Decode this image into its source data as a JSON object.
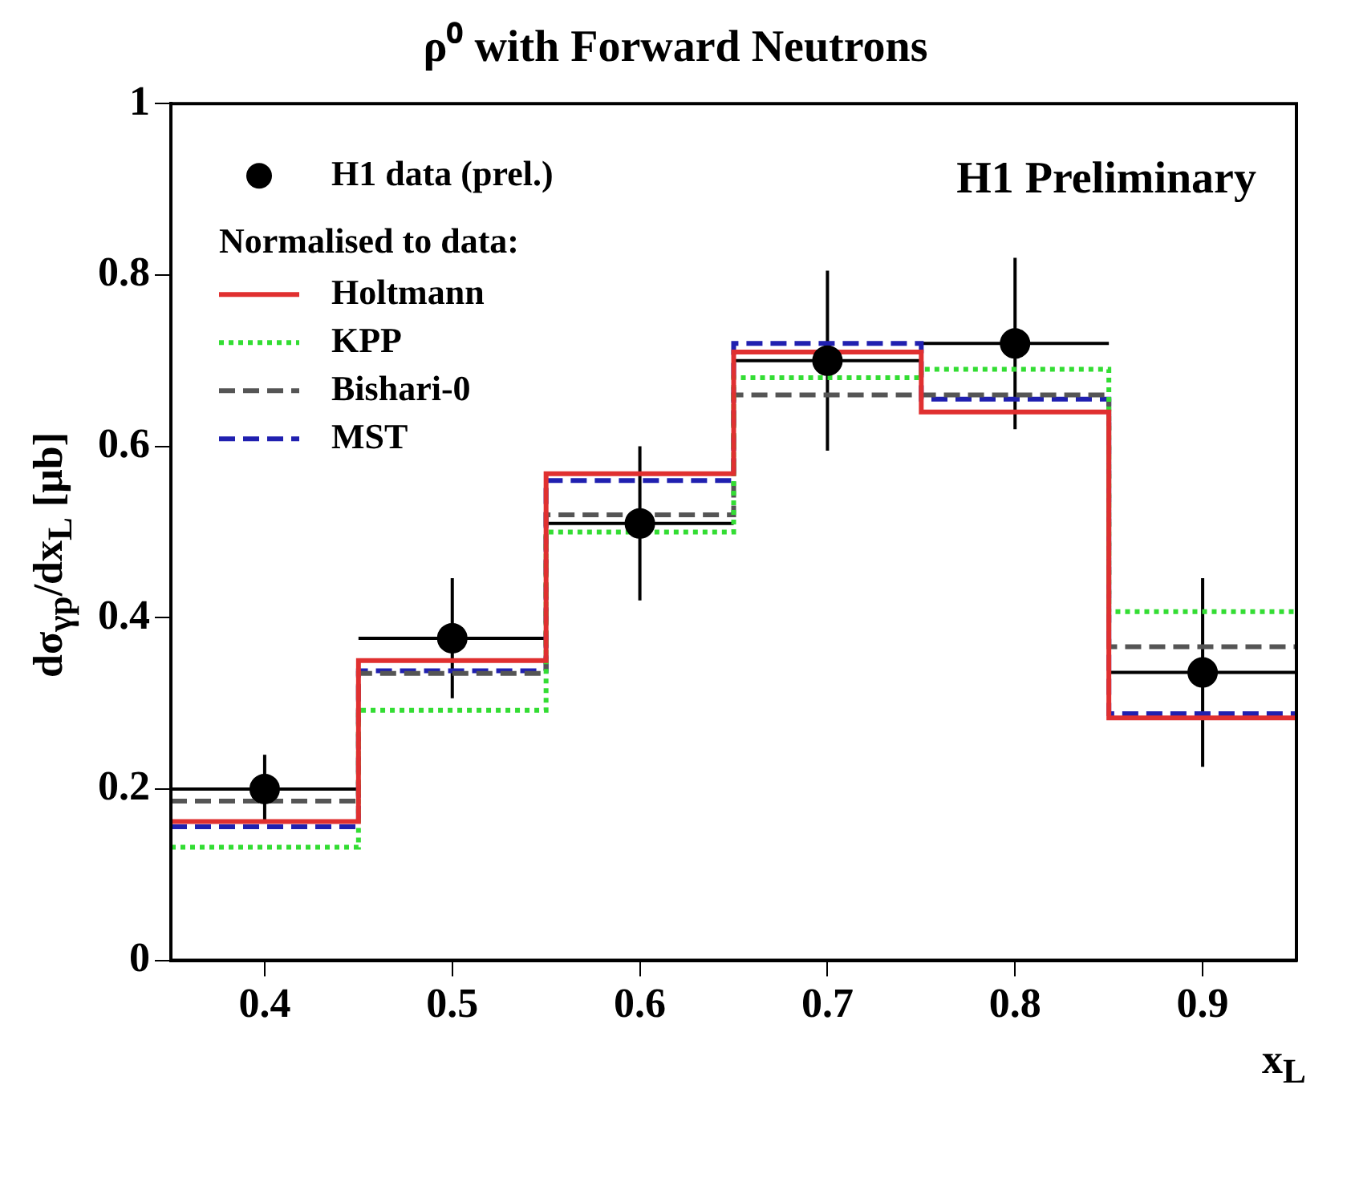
{
  "chart_data": {
    "type": "histogram",
    "title": "ρ⁰ with Forward Neutrons",
    "xlabel": "x$_{L}$",
    "ylabel": "dσ$_{γp}$/dx$_{L}$ [μb]",
    "legend_title": "Normalised to data:",
    "legend": "top left",
    "grid": false,
    "annotations": [
      "H1 Preliminary"
    ],
    "xlim": [
      0.35,
      0.95
    ],
    "xticks": [
      0.4,
      0.5,
      0.6,
      0.7,
      0.8,
      0.9
    ],
    "ylim": [
      0,
      1
    ],
    "yticks": [
      0,
      0.2,
      0.4,
      0.6,
      0.8,
      1
    ],
    "bins": [
      0.35,
      0.45,
      0.55,
      0.65,
      0.75,
      0.85,
      0.95
    ],
    "series": [
      {
        "name": "H1 data (prel.)",
        "type": "scatter",
        "marker": "circle",
        "color": "#000000",
        "x": [
          0.4,
          0.5,
          0.6,
          0.7,
          0.8,
          0.9
        ],
        "values": [
          0.2,
          0.376,
          0.51,
          0.7,
          0.72,
          0.336
        ],
        "errors": [
          0.04,
          0.07,
          0.09,
          0.105,
          0.1,
          0.11
        ],
        "xerrors": [
          0.05,
          0.05,
          0.05,
          0.05,
          0.05,
          0.05
        ]
      },
      {
        "name": "Holtmann",
        "line_style": "solid",
        "color": "#e03030",
        "values": [
          0.162,
          0.35,
          0.568,
          0.71,
          0.64,
          0.283
        ]
      },
      {
        "name": "KPP",
        "line_style": "dotted",
        "color": "#33dd33",
        "values": [
          0.132,
          0.292,
          0.5,
          0.68,
          0.69,
          0.407
        ]
      },
      {
        "name": "Bishari-0",
        "line_style": "dashed",
        "color": "#555555",
        "values": [
          0.186,
          0.335,
          0.52,
          0.66,
          0.66,
          0.366
        ]
      },
      {
        "name": "MST",
        "line_style": "dashed",
        "color": "#2020b0",
        "values": [
          0.156,
          0.338,
          0.56,
          0.72,
          0.655,
          0.288
        ]
      }
    ]
  }
}
